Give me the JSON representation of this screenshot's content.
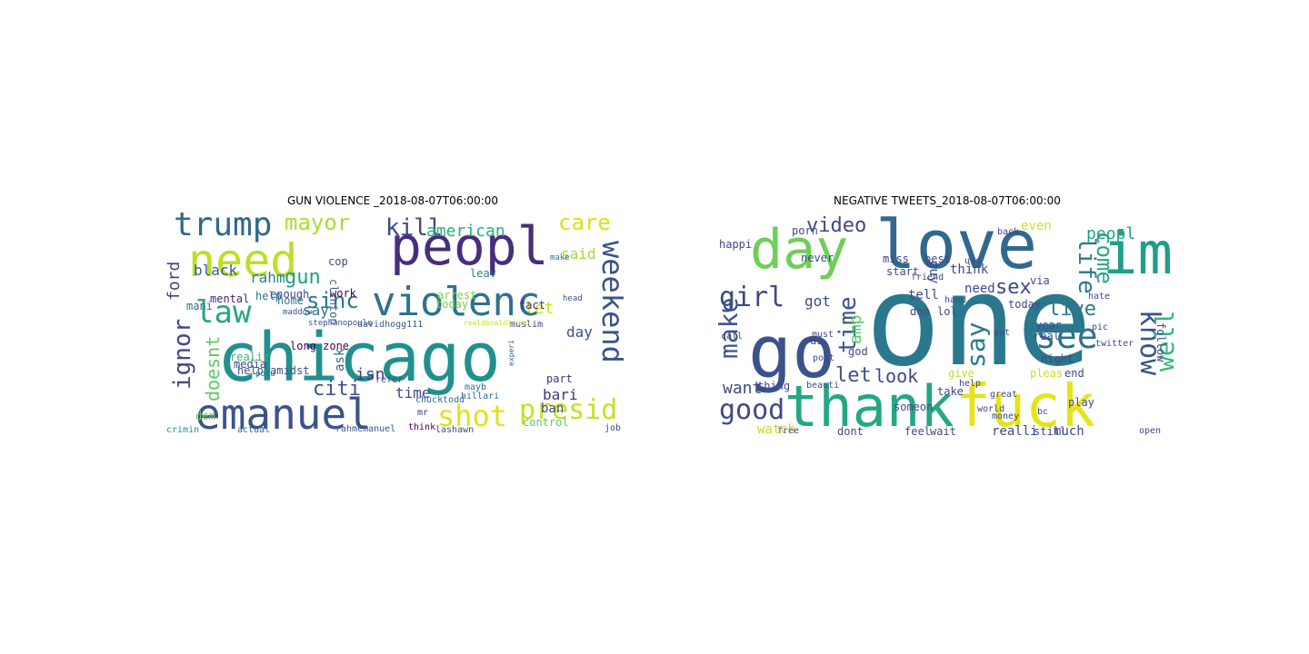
{
  "panels": [
    {
      "title": "GUN VIOLENCE _2018-08-07T06:00:00",
      "words": [
        {
          "text": "chicago",
          "color": "#21908d"
        },
        {
          "text": "peopl",
          "color": "#472d7b"
        },
        {
          "text": "need",
          "color": "#bddf26"
        },
        {
          "text": "emanuel",
          "color": "#3b528b"
        },
        {
          "text": "violenc",
          "color": "#2c728e"
        },
        {
          "text": "trump",
          "color": "#31688e"
        },
        {
          "text": "law",
          "color": "#22a884"
        },
        {
          "text": "weekend",
          "color": "#3b528b"
        },
        {
          "text": "shot",
          "color": "#e0e318"
        },
        {
          "text": "presid",
          "color": "#c8e020"
        },
        {
          "text": "mayor",
          "color": "#addc30"
        },
        {
          "text": "kill",
          "color": "#3e4989"
        },
        {
          "text": "american",
          "color": "#28ae80"
        },
        {
          "text": "care",
          "color": "#d8e219"
        },
        {
          "text": "sinc",
          "color": "#2a788e"
        },
        {
          "text": "gun",
          "color": "#1f9e89"
        },
        {
          "text": "ignor",
          "color": "#3e4989"
        },
        {
          "text": "citi",
          "color": "#3b528b"
        },
        {
          "text": "doesnt",
          "color": "#5ec962"
        },
        {
          "text": "black",
          "color": "#365d8d"
        },
        {
          "text": "ford",
          "color": "#414487"
        },
        {
          "text": "rahm",
          "color": "#26828e"
        },
        {
          "text": "said",
          "color": "#a0da39"
        },
        {
          "text": "let",
          "color": "#d0e11c"
        },
        {
          "text": "day",
          "color": "#3b528b"
        },
        {
          "text": "isn",
          "color": "#443983"
        },
        {
          "text": "say",
          "color": "#2a788e"
        },
        {
          "text": "time",
          "color": "#3e4989"
        },
        {
          "text": "bari",
          "color": "#46327e"
        },
        {
          "text": "ban",
          "color": "#3e4989"
        },
        {
          "text": "mental",
          "color": "#482475"
        },
        {
          "text": "help",
          "color": "#2a788e"
        },
        {
          "text": "dem",
          "color": "#6ece58"
        },
        {
          "text": "ask",
          "color": "#31688e"
        },
        {
          "text": "realiz",
          "color": "#35b779"
        },
        {
          "text": "media",
          "color": "#3e4989"
        },
        {
          "text": "help amidst",
          "color": "#3b528b"
        },
        {
          "text": "control",
          "color": "#5ec962"
        },
        {
          "text": "fact",
          "color": "#482878"
        },
        {
          "text": "part",
          "color": "#46327e"
        },
        {
          "text": "leav",
          "color": "#287d8e"
        },
        {
          "text": "arrest",
          "color": "#7fd34e"
        },
        {
          "text": "today",
          "color": "#6ece58"
        },
        {
          "text": "enough",
          "color": "#3e4989"
        },
        {
          "text": "work",
          "color": "#440154"
        },
        {
          "text": "cop",
          "color": "#3e4989"
        },
        {
          "text": "clinton",
          "color": "#34618d"
        },
        {
          "text": "home",
          "color": "#2a788e"
        },
        {
          "text": "mani",
          "color": "#2c728e"
        },
        {
          "text": "long zone",
          "color": "#440154"
        },
        {
          "text": "davidhogg111",
          "color": "#38588c"
        },
        {
          "text": "muslim",
          "color": "#3f4788"
        },
        {
          "text": "mayb",
          "color": "#2c728e"
        },
        {
          "text": "mr",
          "color": "#453882"
        },
        {
          "text": "refer",
          "color": "#38588c"
        },
        {
          "text": "chucktodd",
          "color": "#2e6e8e"
        },
        {
          "text": "hillari",
          "color": "#2e6e8e"
        },
        {
          "text": "lashawn",
          "color": "#3e4a89"
        },
        {
          "text": "rahmemanuel",
          "color": "#39558c"
        },
        {
          "text": "think",
          "color": "#440154"
        },
        {
          "text": "actual",
          "color": "#2f6c8e"
        },
        {
          "text": "crimin",
          "color": "#21918c"
        },
        {
          "text": "job",
          "color": "#3e4989"
        },
        {
          "text": "potu",
          "color": "#2a788e"
        },
        {
          "text": "make",
          "color": "#2c728e"
        },
        {
          "text": "head",
          "color": "#3b528b"
        },
        {
          "text": "maddow",
          "color": "#3b528b"
        },
        {
          "text": "stephanopoulo",
          "color": "#3b528b"
        },
        {
          "text": "realdonaldtrump",
          "color": "#c2df23"
        },
        {
          "text": "experi",
          "color": "#35608d"
        }
      ]
    },
    {
      "title": "NEGATIVE TWEETS_2018-08-07T06:00:00",
      "words": [
        {
          "text": "one",
          "color": "#2a788e"
        },
        {
          "text": "love",
          "color": "#31688e"
        },
        {
          "text": "im",
          "color": "#1f9e89"
        },
        {
          "text": "day",
          "color": "#6ece58"
        },
        {
          "text": "go",
          "color": "#3b528b"
        },
        {
          "text": "thank",
          "color": "#22a884"
        },
        {
          "text": "fuck",
          "color": "#e5e419"
        },
        {
          "text": "good",
          "color": "#3e4989"
        },
        {
          "text": "girl",
          "color": "#3e4989"
        },
        {
          "text": "make",
          "color": "#3b528b"
        },
        {
          "text": "video",
          "color": "#3e4989"
        },
        {
          "text": "time",
          "color": "#3b528b"
        },
        {
          "text": "life",
          "color": "#2a788e"
        },
        {
          "text": "see",
          "color": "#2c728e"
        },
        {
          "text": "know",
          "color": "#3b528b"
        },
        {
          "text": "well",
          "color": "#35b779"
        },
        {
          "text": "say",
          "color": "#2a788e"
        },
        {
          "text": "sex",
          "color": "#3e4989"
        },
        {
          "text": "live",
          "color": "#2a788e"
        },
        {
          "text": "come",
          "color": "#22a884"
        },
        {
          "text": "peopl",
          "color": "#1fa188"
        },
        {
          "text": "let",
          "color": "#3b528b"
        },
        {
          "text": "look",
          "color": "#3e4989"
        },
        {
          "text": "want",
          "color": "#3e4989"
        },
        {
          "text": "amp",
          "color": "#5ec962"
        },
        {
          "text": "got",
          "color": "#3e4989"
        },
        {
          "text": "realli",
          "color": "#3e4989"
        },
        {
          "text": "much",
          "color": "#3e4989"
        },
        {
          "text": "watch",
          "color": "#c2df23"
        },
        {
          "text": "need",
          "color": "#3e4989"
        },
        {
          "text": "think",
          "color": "#3e4989"
        },
        {
          "text": "guy",
          "color": "#3e4989"
        },
        {
          "text": "even",
          "color": "#d0e11c"
        },
        {
          "text": "tell",
          "color": "#3e4989"
        },
        {
          "text": "happi",
          "color": "#3e4989"
        },
        {
          "text": "porn",
          "color": "#3e4989"
        },
        {
          "text": "never",
          "color": "#3e4989"
        },
        {
          "text": "best",
          "color": "#3e4989"
        },
        {
          "text": "start",
          "color": "#3e4989"
        },
        {
          "text": "miss",
          "color": "#3e4989"
        },
        {
          "text": "don",
          "color": "#3e4989"
        },
        {
          "text": "lol",
          "color": "#3e4989"
        },
        {
          "text": "today",
          "color": "#3e4989"
        },
        {
          "text": "via",
          "color": "#3e4989"
        },
        {
          "text": "year",
          "color": "#3e4989"
        },
        {
          "text": "night",
          "color": "#3e4989"
        },
        {
          "text": "end",
          "color": "#3e4989"
        },
        {
          "text": "pleas",
          "color": "#d0e11c"
        },
        {
          "text": "follow",
          "color": "#3e4989"
        },
        {
          "text": "give",
          "color": "#c2df23"
        },
        {
          "text": "take",
          "color": "#3e4989"
        },
        {
          "text": "god",
          "color": "#3e4989"
        },
        {
          "text": "thing",
          "color": "#3e4989"
        },
        {
          "text": "us",
          "color": "#3e4989"
        },
        {
          "text": "feel",
          "color": "#3e4989"
        },
        {
          "text": "wait",
          "color": "#3e4989"
        },
        {
          "text": "dont",
          "color": "#3e4989"
        },
        {
          "text": "free",
          "color": "#3e4989"
        },
        {
          "text": "someon",
          "color": "#3e4989"
        },
        {
          "text": "still",
          "color": "#3e4989"
        },
        {
          "text": "play",
          "color": "#3e4989"
        },
        {
          "text": "real",
          "color": "#3e4989"
        },
        {
          "text": "open",
          "color": "#3e4989"
        },
        {
          "text": "bc",
          "color": "#3e4989"
        },
        {
          "text": "put",
          "color": "#3e4989"
        },
        {
          "text": "help",
          "color": "#3e4989"
        },
        {
          "text": "friend",
          "color": "#3e4989"
        },
        {
          "text": "use",
          "color": "#3e4989"
        },
        {
          "text": "hand",
          "color": "#3e4989"
        },
        {
          "text": "great",
          "color": "#3e4989"
        },
        {
          "text": "beauti",
          "color": "#3e4989"
        },
        {
          "text": "twitter",
          "color": "#3e4989"
        },
        {
          "text": "pic",
          "color": "#3e4989"
        },
        {
          "text": "back",
          "color": "#3e4989"
        },
        {
          "text": "hate",
          "color": "#3e4989"
        },
        {
          "text": "post",
          "color": "#3e4989"
        },
        {
          "text": "must",
          "color": "#3e4989"
        },
        {
          "text": "call",
          "color": "#3e4989"
        },
        {
          "text": "world",
          "color": "#3e4989"
        },
        {
          "text": "money",
          "color": "#3e4989"
        }
      ]
    }
  ]
}
